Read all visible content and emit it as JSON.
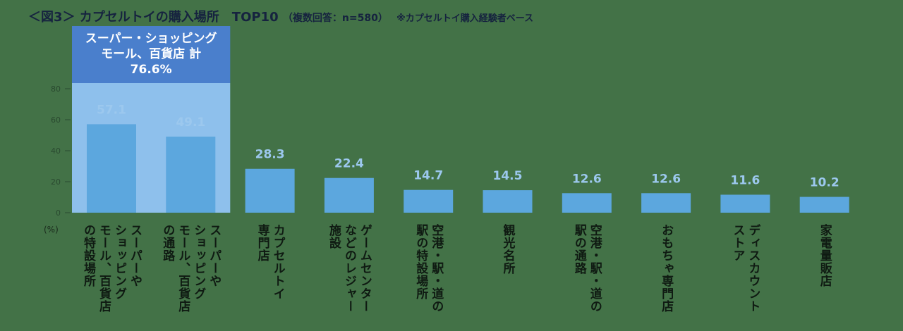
{
  "header": {
    "title": "＜図3＞ カプセルトイの購入場所　TOP10",
    "subtitle": "（複数回答：n=580）",
    "note": "※カプセルトイ購入経験者ベース"
  },
  "colors": {
    "background": "#437247",
    "bar": "#5ca7de",
    "highlight_box": "#8ec0ec",
    "highlight_header": "#4a7fcc",
    "value_label": "#9cc8ee",
    "axis_text": "#2a4a30"
  },
  "chart_data": {
    "type": "bar",
    "title": "",
    "ylabel": "(%)",
    "ylim": [
      0,
      80
    ],
    "yticks": [
      0,
      20,
      40,
      60,
      80
    ],
    "grid": false,
    "categories": [
      "スーパーや\nショッピング\nモール、百貨店\nの特設場所",
      "スーパーや\nショッピング\nモール、百貨店\nの通路",
      "カプセルトイ\n専門店",
      "ゲームセンター\nなどのレジャー\n施設",
      "空港・駅・道の\n駅の特設場所",
      "観光名所",
      "空港・駅・道の\n駅の通路",
      "おもちゃ専門店",
      "ディスカウント\nストア",
      "家電量販店"
    ],
    "values": [
      57.1,
      49.1,
      28.3,
      22.4,
      14.7,
      14.5,
      12.6,
      12.6,
      11.6,
      10.2
    ],
    "value_labels": [
      "57.1",
      "49.1",
      "28.3",
      "22.4",
      "14.7",
      "14.5",
      "12.6",
      "12.6",
      "11.6",
      "10.2"
    ],
    "annotation": {
      "lines": [
        "スーパー・ショッピング",
        "モール、百貨店 計",
        "76.6%"
      ],
      "covers_categories": [
        0,
        1
      ]
    }
  }
}
